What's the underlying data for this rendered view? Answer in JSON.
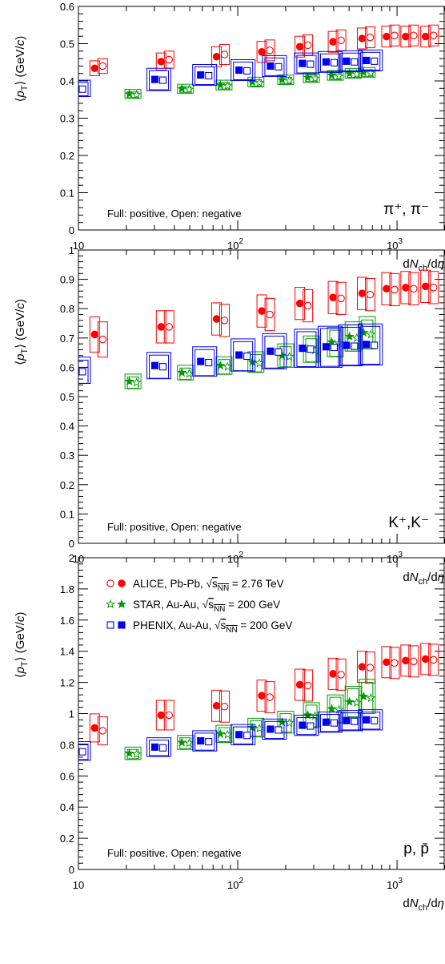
{
  "chart_data": [
    {
      "type": "scatter",
      "particle": "π⁺, π⁻",
      "ylabel": "⟨pT⟩ (GeV/c)",
      "xlabel": "dNch/dη",
      "xscale": "log",
      "xlim": [
        10,
        2000
      ],
      "ylim": [
        0,
        0.6
      ],
      "y_major_ticks": [
        0,
        0.1,
        0.2,
        0.3,
        0.4,
        0.5,
        0.6
      ],
      "y_tick_labels": [
        "0",
        "0.1",
        "0.2",
        "0.3",
        "0.4",
        "0.5",
        "0.6"
      ],
      "annotation": "Full: positive, Open: negative",
      "series": [
        {
          "name": "ALICE, Pb-Pb, √sNN = 2.76 TeV",
          "color": "#ff0000",
          "marker": "circle",
          "points": [
            {
              "x": 13.4,
              "pos": 0.434,
              "neg": 0.44,
              "sys": 0.02
            },
            {
              "x": 35,
              "pos": 0.452,
              "neg": 0.457,
              "sys": 0.023
            },
            {
              "x": 78,
              "pos": 0.465,
              "neg": 0.471,
              "sys": 0.027
            },
            {
              "x": 150,
              "pos": 0.478,
              "neg": 0.482,
              "sys": 0.028
            },
            {
              "x": 260,
              "pos": 0.492,
              "neg": 0.496,
              "sys": 0.028
            },
            {
              "x": 420,
              "pos": 0.505,
              "neg": 0.509,
              "sys": 0.028
            },
            {
              "x": 640,
              "pos": 0.514,
              "neg": 0.517,
              "sys": 0.028
            },
            {
              "x": 910,
              "pos": 0.519,
              "neg": 0.522,
              "sys": 0.028
            },
            {
              "x": 1200,
              "pos": 0.519,
              "neg": 0.522,
              "sys": 0.028
            },
            {
              "x": 1600,
              "pos": 0.519,
              "neg": 0.522,
              "sys": 0.028
            }
          ]
        },
        {
          "name": "STAR, Au-Au, √sNN = 200 GeV",
          "color": "#009900",
          "marker": "star",
          "points": [
            {
              "x": 22,
              "pos": 0.365,
              "neg": 0.363,
              "sys": 0.012
            },
            {
              "x": 47,
              "pos": 0.379,
              "neg": 0.377,
              "sys": 0.012
            },
            {
              "x": 82,
              "pos": 0.389,
              "neg": 0.387,
              "sys": 0.013
            },
            {
              "x": 130,
              "pos": 0.397,
              "neg": 0.395,
              "sys": 0.013
            },
            {
              "x": 200,
              "pos": 0.403,
              "neg": 0.401,
              "sys": 0.013
            },
            {
              "x": 290,
              "pos": 0.409,
              "neg": 0.407,
              "sys": 0.013
            },
            {
              "x": 410,
              "pos": 0.415,
              "neg": 0.413,
              "sys": 0.013
            },
            {
              "x": 530,
              "pos": 0.42,
              "neg": 0.418,
              "sys": 0.013
            },
            {
              "x": 650,
              "pos": 0.423,
              "neg": 0.421,
              "sys": 0.013
            }
          ]
        },
        {
          "name": "PHENIX, Au-Au, √sNN = 200 GeV",
          "color": "#0000ee",
          "marker": "square",
          "points": [
            {
              "x": 10,
              "pos": 0.38,
              "neg": 0.378,
              "sys": 0.022
            },
            {
              "x": 32,
              "pos": 0.404,
              "neg": 0.402,
              "sys": 0.03
            },
            {
              "x": 62,
              "pos": 0.416,
              "neg": 0.414,
              "sys": 0.028
            },
            {
              "x": 108,
              "pos": 0.429,
              "neg": 0.427,
              "sys": 0.028
            },
            {
              "x": 170,
              "pos": 0.44,
              "neg": 0.438,
              "sys": 0.028
            },
            {
              "x": 270,
              "pos": 0.447,
              "neg": 0.445,
              "sys": 0.028
            },
            {
              "x": 380,
              "pos": 0.451,
              "neg": 0.449,
              "sys": 0.028
            },
            {
              "x": 510,
              "pos": 0.453,
              "neg": 0.451,
              "sys": 0.028
            },
            {
              "x": 680,
              "pos": 0.455,
              "neg": 0.453,
              "sys": 0.028
            }
          ]
        }
      ]
    },
    {
      "type": "scatter",
      "particle": "K⁺,K⁻",
      "ylabel": "⟨pT⟩ (GeV/c)",
      "xlabel": "dNch/dη",
      "xscale": "log",
      "xlim": [
        10,
        2000
      ],
      "ylim": [
        0,
        1
      ],
      "y_major_ticks": [
        0,
        0.1,
        0.2,
        0.3,
        0.4,
        0.5,
        0.6,
        0.7,
        0.8,
        0.9,
        1
      ],
      "y_tick_labels": [
        "0",
        "0.1",
        "0.2",
        "0.3",
        "0.4",
        "0.5",
        "0.6",
        "0.7",
        "0.8",
        "0.9",
        "1"
      ],
      "annotation": "Full: positive, Open: negative",
      "series": [
        {
          "name": "ALICE, Pb-Pb, √sNN = 2.76 TeV",
          "color": "#ff0000",
          "marker": "circle",
          "points": [
            {
              "x": 13.4,
              "pos": 0.712,
              "neg": 0.695,
              "sys": 0.06
            },
            {
              "x": 35,
              "pos": 0.738,
              "neg": 0.738,
              "sys": 0.055
            },
            {
              "x": 78,
              "pos": 0.765,
              "neg": 0.76,
              "sys": 0.055
            },
            {
              "x": 150,
              "pos": 0.792,
              "neg": 0.78,
              "sys": 0.055
            },
            {
              "x": 260,
              "pos": 0.818,
              "neg": 0.81,
              "sys": 0.055
            },
            {
              "x": 420,
              "pos": 0.838,
              "neg": 0.835,
              "sys": 0.055
            },
            {
              "x": 640,
              "pos": 0.852,
              "neg": 0.848,
              "sys": 0.055
            },
            {
              "x": 910,
              "pos": 0.868,
              "neg": 0.865,
              "sys": 0.055
            },
            {
              "x": 1200,
              "pos": 0.872,
              "neg": 0.868,
              "sys": 0.055
            },
            {
              "x": 1600,
              "pos": 0.876,
              "neg": 0.872,
              "sys": 0.055
            }
          ]
        },
        {
          "name": "STAR, Au-Au, √sNN = 200 GeV",
          "color": "#009900",
          "marker": "star",
          "points": [
            {
              "x": 22,
              "pos": 0.552,
              "neg": 0.548,
              "sys": 0.025
            },
            {
              "x": 47,
              "pos": 0.582,
              "neg": 0.578,
              "sys": 0.025
            },
            {
              "x": 82,
              "pos": 0.606,
              "neg": 0.602,
              "sys": 0.03
            },
            {
              "x": 130,
              "pos": 0.618,
              "neg": 0.614,
              "sys": 0.035
            },
            {
              "x": 200,
              "pos": 0.64,
              "neg": 0.636,
              "sys": 0.04
            },
            {
              "x": 290,
              "pos": 0.662,
              "neg": 0.658,
              "sys": 0.045
            },
            {
              "x": 410,
              "pos": 0.686,
              "neg": 0.682,
              "sys": 0.05
            },
            {
              "x": 530,
              "pos": 0.705,
              "neg": 0.7,
              "sys": 0.05
            },
            {
              "x": 650,
              "pos": 0.718,
              "neg": 0.712,
              "sys": 0.055
            }
          ]
        },
        {
          "name": "PHENIX, Au-Au, √sNN = 200 GeV",
          "color": "#0000ee",
          "marker": "square",
          "points": [
            {
              "x": 10,
              "pos": 0.59,
              "neg": 0.585,
              "sys": 0.045
            },
            {
              "x": 32,
              "pos": 0.606,
              "neg": 0.602,
              "sys": 0.045
            },
            {
              "x": 62,
              "pos": 0.62,
              "neg": 0.616,
              "sys": 0.05
            },
            {
              "x": 108,
              "pos": 0.642,
              "neg": 0.638,
              "sys": 0.055
            },
            {
              "x": 170,
              "pos": 0.655,
              "neg": 0.652,
              "sys": 0.06
            },
            {
              "x": 270,
              "pos": 0.665,
              "neg": 0.662,
              "sys": 0.065
            },
            {
              "x": 380,
              "pos": 0.67,
              "neg": 0.668,
              "sys": 0.07
            },
            {
              "x": 510,
              "pos": 0.675,
              "neg": 0.672,
              "sys": 0.07
            },
            {
              "x": 680,
              "pos": 0.678,
              "neg": 0.675,
              "sys": 0.07
            }
          ]
        }
      ]
    },
    {
      "type": "scatter",
      "particle": "p, p̄",
      "ylabel": "⟨pT⟩ (GeV/c)",
      "xlabel": "dNch/dη",
      "xscale": "log",
      "xlim": [
        10,
        2000
      ],
      "ylim": [
        0,
        2
      ],
      "y_major_ticks": [
        0,
        0.2,
        0.4,
        0.6,
        0.8,
        1,
        1.2,
        1.4,
        1.6,
        1.8,
        2
      ],
      "y_tick_labels": [
        "0",
        "0.2",
        "0.4",
        "0.6",
        "0.8",
        "1",
        "1.2",
        "1.4",
        "1.6",
        "1.8",
        "2"
      ],
      "annotation": "Full: positive, Open: negative",
      "legend": {
        "position": "top-left",
        "entries": [
          {
            "name": "ALICE, Pb-Pb, √sNN = 2.76 TeV",
            "color": "#ff0000",
            "marker": "circle",
            "label_main": "ALICE, Pb-Pb, ",
            "label_sqrt": "s",
            "label_sub": "NN",
            "label_tail": " = 2.76 TeV"
          },
          {
            "name": "STAR, Au-Au, √sNN = 200 GeV",
            "color": "#009900",
            "marker": "star",
            "label_main": "STAR, Au-Au, ",
            "label_sqrt": "s",
            "label_sub": "NN",
            "label_tail": " = 200 GeV"
          },
          {
            "name": "PHENIX, Au-Au, √sNN = 200 GeV",
            "color": "#0000ee",
            "marker": "square",
            "label_main": "PHENIX, Au-Au, ",
            "label_sqrt": "s",
            "label_sub": "NN",
            "label_tail": " = 200 GeV"
          }
        ]
      },
      "series": [
        {
          "name": "ALICE, Pb-Pb, √sNN = 2.76 TeV",
          "color": "#ff0000",
          "marker": "circle",
          "points": [
            {
              "x": 13.4,
              "pos": 0.908,
              "neg": 0.89,
              "sys": 0.09
            },
            {
              "x": 35,
              "pos": 0.99,
              "neg": 0.99,
              "sys": 0.095
            },
            {
              "x": 78,
              "pos": 1.05,
              "neg": 1.045,
              "sys": 0.1
            },
            {
              "x": 150,
              "pos": 1.115,
              "neg": 1.105,
              "sys": 0.1
            },
            {
              "x": 260,
              "pos": 1.185,
              "neg": 1.18,
              "sys": 0.1
            },
            {
              "x": 420,
              "pos": 1.255,
              "neg": 1.25,
              "sys": 0.1
            },
            {
              "x": 640,
              "pos": 1.3,
              "neg": 1.295,
              "sys": 0.1
            },
            {
              "x": 910,
              "pos": 1.33,
              "neg": 1.325,
              "sys": 0.1
            },
            {
              "x": 1200,
              "pos": 1.34,
              "neg": 1.335,
              "sys": 0.1
            },
            {
              "x": 1600,
              "pos": 1.35,
              "neg": 1.345,
              "sys": 0.1
            }
          ]
        },
        {
          "name": "STAR, Au-Au, √sNN = 200 GeV",
          "color": "#009900",
          "marker": "star",
          "points": [
            {
              "x": 22,
              "pos": 0.745,
              "neg": 0.74,
              "sys": 0.04
            },
            {
              "x": 47,
              "pos": 0.815,
              "neg": 0.81,
              "sys": 0.045
            },
            {
              "x": 82,
              "pos": 0.87,
              "neg": 0.865,
              "sys": 0.055
            },
            {
              "x": 130,
              "pos": 0.91,
              "neg": 0.905,
              "sys": 0.06
            },
            {
              "x": 200,
              "pos": 0.945,
              "neg": 0.94,
              "sys": 0.07
            },
            {
              "x": 290,
              "pos": 0.99,
              "neg": 0.985,
              "sys": 0.08
            },
            {
              "x": 410,
              "pos": 1.03,
              "neg": 1.025,
              "sys": 0.09
            },
            {
              "x": 530,
              "pos": 1.075,
              "neg": 1.07,
              "sys": 0.1
            },
            {
              "x": 650,
              "pos": 1.11,
              "neg": 1.1,
              "sys": 0.11
            }
          ]
        },
        {
          "name": "PHENIX, Au-Au, √sNN = 200 GeV",
          "color": "#0000ee",
          "marker": "square",
          "points": [
            {
              "x": 10,
              "pos": 0.76,
              "neg": 0.755,
              "sys": 0.06
            },
            {
              "x": 32,
              "pos": 0.785,
              "neg": 0.78,
              "sys": 0.06
            },
            {
              "x": 62,
              "pos": 0.825,
              "neg": 0.82,
              "sys": 0.065
            },
            {
              "x": 108,
              "pos": 0.865,
              "neg": 0.86,
              "sys": 0.065
            },
            {
              "x": 170,
              "pos": 0.9,
              "neg": 0.895,
              "sys": 0.065
            },
            {
              "x": 270,
              "pos": 0.925,
              "neg": 0.92,
              "sys": 0.065
            },
            {
              "x": 380,
              "pos": 0.945,
              "neg": 0.94,
              "sys": 0.065
            },
            {
              "x": 510,
              "pos": 0.955,
              "neg": 0.95,
              "sys": 0.065
            },
            {
              "x": 680,
              "pos": 0.96,
              "neg": 0.955,
              "sys": 0.065
            }
          ]
        }
      ]
    }
  ],
  "axis": {
    "y_title_prefix": "⟨",
    "y_title_p": "p",
    "y_title_sub": "T",
    "y_title_mid": "⟩ (GeV/",
    "y_title_c": "c",
    "y_title_suffix": ")",
    "x_title_d": "d",
    "x_title_N": "N",
    "x_title_sub": "ch",
    "x_title_mid": "/d",
    "x_title_eta": "η",
    "x_tick_10": "10",
    "x_tick_base": "10",
    "x_tick_exp2": "2",
    "x_tick_exp3": "3"
  }
}
